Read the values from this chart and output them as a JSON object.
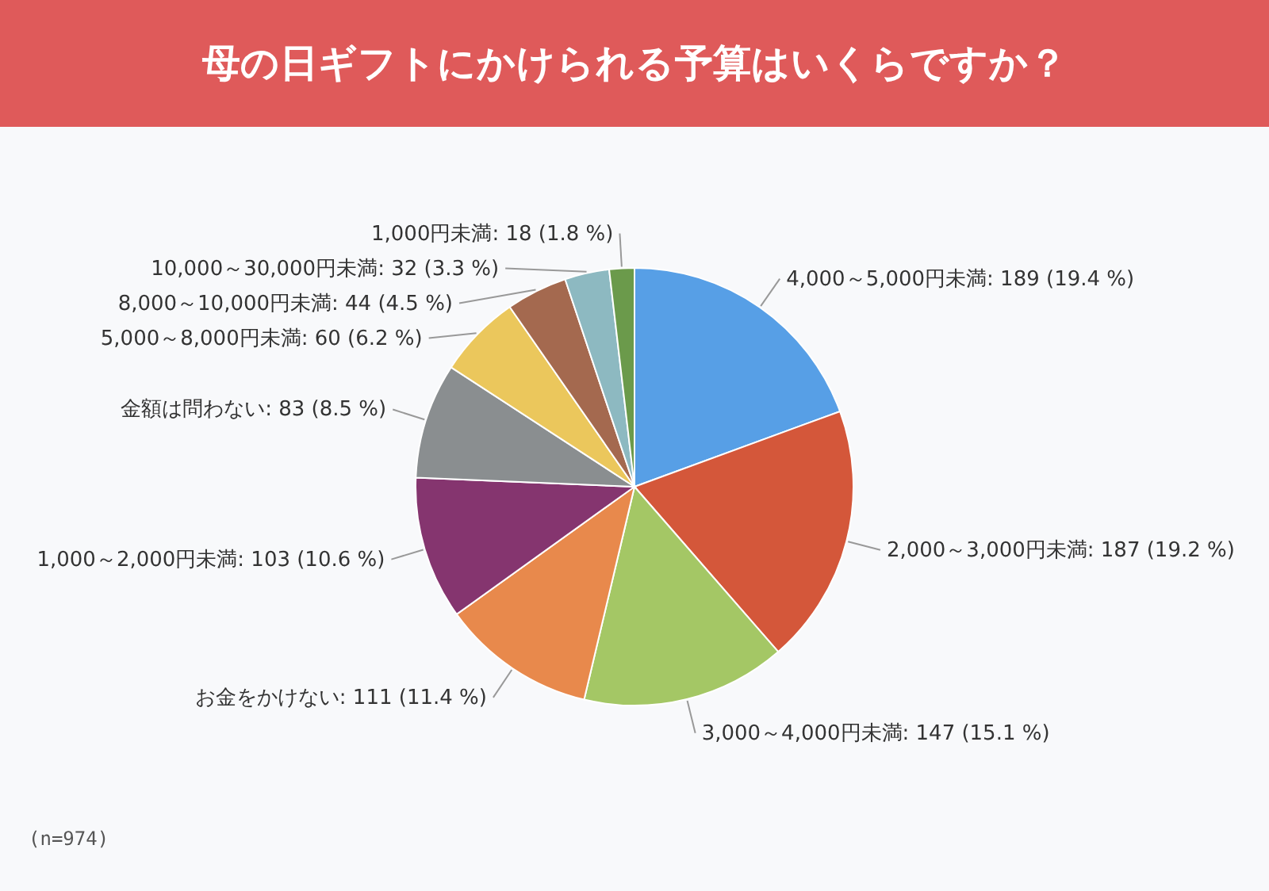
{
  "chart_data": {
    "type": "pie",
    "title": "母の日ギフトにかけられる予算はいくらですか？",
    "categories": [
      "4,000～5,000円未満",
      "2,000～3,000円未満",
      "3,000～4,000円未満",
      "お金をかけない",
      "1,000～2,000円未満",
      "金額は問わない",
      "5,000～8,000円未満",
      "8,000～10,000円未満",
      "10,000～30,000円未満",
      "1,000円未満"
    ],
    "values": [
      189,
      187,
      147,
      111,
      103,
      83,
      60,
      44,
      32,
      18
    ],
    "value_labels": [
      "189 (19.4 %)",
      "187 (19.2 %)",
      "147 (15.1 %)",
      "111 (11.4 %)",
      "103 (10.6 %)",
      "83 (8.5 %)",
      "60 (6.2 %)",
      "44 (4.5 %)",
      "32 (3.3 %)",
      "18 (1.8 %)"
    ],
    "colors": [
      "#579fe6",
      "#d4573a",
      "#a4c765",
      "#e8894c",
      "#85356f",
      "#8a8e90",
      "#ebc75c",
      "#a4694f",
      "#8db9c1",
      "#6b9a4b"
    ],
    "annotations": [
      "(n=974)"
    ]
  }
}
